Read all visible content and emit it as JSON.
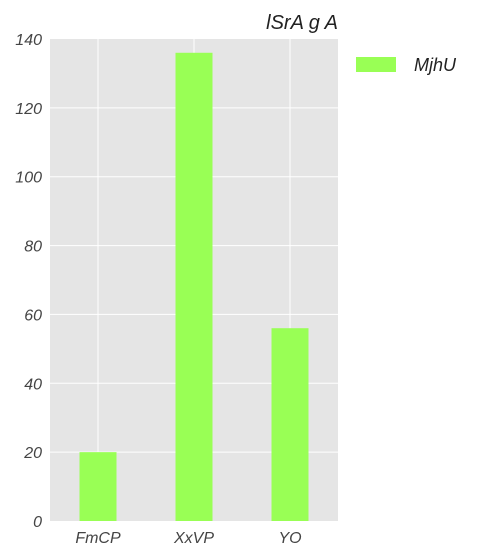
{
  "chart_data": {
    "type": "bar",
    "title": "lSrA g  A",
    "categories": [
      "FmCP",
      "XxVP",
      "YO"
    ],
    "series": [
      {
        "name": "MjhU",
        "values": [
          20,
          136,
          56
        ],
        "color": "#99ff55"
      }
    ],
    "ylim": [
      0,
      140
    ],
    "yticks": [
      0,
      20,
      40,
      60,
      80,
      100,
      120,
      140
    ],
    "xlabel": "",
    "ylabel": "",
    "grid": true,
    "legend": "top-right outside"
  }
}
